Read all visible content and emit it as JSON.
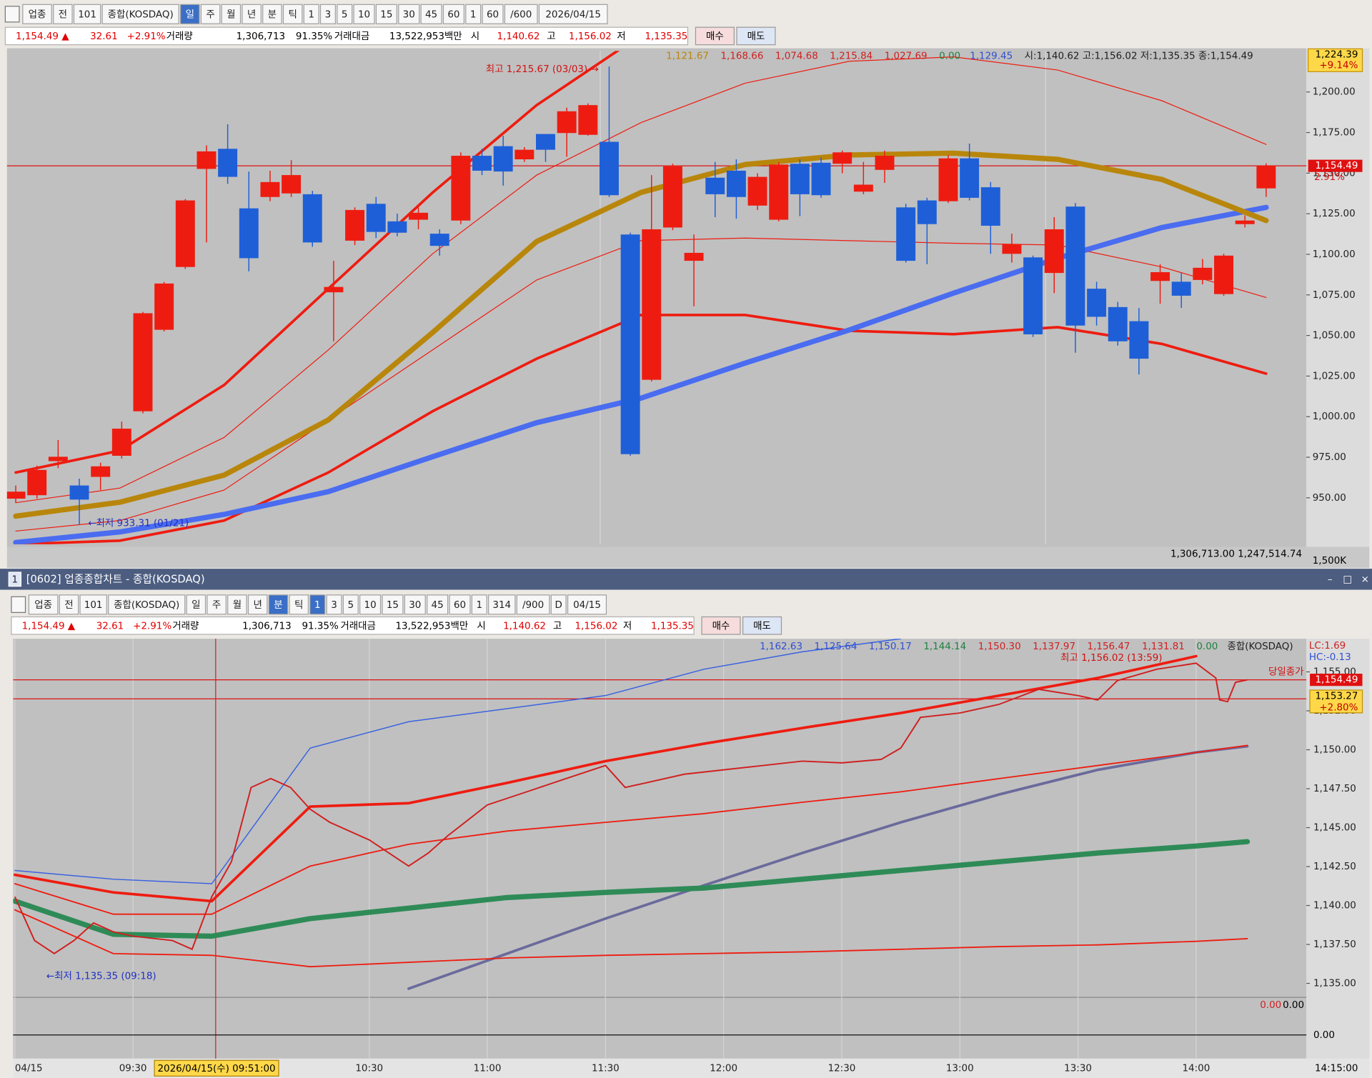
{
  "top_toolbar": {
    "items": [
      "업종",
      "전",
      "101",
      "종합(KOSDAQ)",
      "일",
      "주",
      "월",
      "년",
      "분",
      "틱",
      "1",
      "3",
      "5",
      "10",
      "15",
      "30",
      "45",
      "60",
      "1",
      "60",
      "/600",
      "2026/04/15"
    ],
    "selected_index": 4
  },
  "top_info": [
    {
      "text": "1,154.49 ▲",
      "color": "#e00000"
    },
    {
      "text": "32.61",
      "color": "#e00000"
    },
    {
      "text": "+2.91%",
      "color": "#e00000"
    },
    {
      "text": "거래량",
      "color": "#000000"
    },
    {
      "text": "1,306,713",
      "color": "#000000"
    },
    {
      "text": "91.35%",
      "color": "#000000"
    },
    {
      "text": "거래대금",
      "color": "#000000"
    },
    {
      "text": "13,522,953백만",
      "color": "#000000"
    },
    {
      "text": "시",
      "color": "#000000"
    },
    {
      "text": "1,140.62",
      "color": "#e00000"
    },
    {
      "text": "고",
      "color": "#000000"
    },
    {
      "text": "1,156.02",
      "color": "#e00000"
    },
    {
      "text": "저",
      "color": "#000000"
    },
    {
      "text": "1,135.35",
      "color": "#e00000"
    }
  ],
  "top_buttons": [
    "매수",
    "매도"
  ],
  "top_chart": {
    "legend": [
      {
        "text": "1,121.67",
        "color": "#b8860b"
      },
      {
        "text": "1,168.66",
        "color": "#d02020"
      },
      {
        "text": "1,074.68",
        "color": "#d02020"
      },
      {
        "text": "1,215.84",
        "color": "#d02020"
      },
      {
        "text": "1,027.69",
        "color": "#d02020"
      },
      {
        "text": "0.00",
        "color": "#208040"
      },
      {
        "text": "1,129.45",
        "color": "#3050d0"
      },
      {
        "text": "시:1,140.62 고:1,156.02 저:1,135.35 종:1,154.49",
        "color": "#202020"
      }
    ],
    "ylim": [
      921.4,
      1225.3
    ],
    "yticks": [
      {
        "value": 950,
        "label": "950.00"
      },
      {
        "value": 975,
        "label": "975.00"
      },
      {
        "value": 1000,
        "label": "1,000.00"
      },
      {
        "value": 1025,
        "label": "1,025.00"
      },
      {
        "value": 1050,
        "label": "1,050.00"
      },
      {
        "value": 1075,
        "label": "1,075.00"
      },
      {
        "value": 1100,
        "label": "1,100.00"
      },
      {
        "value": 1125,
        "label": "1,125.00"
      },
      {
        "value": 1150,
        "label": "1,150.00"
      },
      {
        "value": 1175,
        "label": "1,175.00"
      },
      {
        "value": 1200,
        "label": "1,200.00"
      }
    ],
    "up_color": "#ee1c10",
    "down_color": "#1e5fd8",
    "candles": {
      "open": [
        949.5,
        951.6,
        972.6,
        957.6,
        962.9,
        975.9,
        1003.3,
        1053.5,
        1092.2,
        1152.6,
        1165.0,
        1128.3,
        1135.3,
        1137.5,
        1137.0,
        1076.6,
        1108.4,
        1131.1,
        1120.3,
        1121.3,
        1112.7,
        1120.8,
        1160.7,
        1166.6,
        1158.5,
        1174.1,
        1174.7,
        1173.6,
        1169.3,
        1112.2,
        1022.7,
        1116.5,
        1096.0,
        1147.2,
        1151.5,
        1130.0,
        1121.3,
        1155.8,
        1156.4,
        1155.8,
        1138.6,
        1152.0,
        1128.9,
        1133.2,
        1132.7,
        1159.1,
        1141.3,
        1100.3,
        1098.1,
        1088.5,
        1129.4,
        1078.8,
        1067.5,
        1058.8,
        1083.6,
        1083.1,
        1084.2,
        1075.5,
        1118.6,
        1140.62
      ],
      "high": [
        957.6,
        969.9,
        985.6,
        961.8,
        971.6,
        996.9,
        1064.5,
        1083.0,
        1134.0,
        1167.1,
        1180.1,
        1151.0,
        1151.5,
        1158.0,
        1139.1,
        1096.0,
        1128.9,
        1135.3,
        1125.1,
        1128.9,
        1115.4,
        1162.8,
        1165.0,
        1173.0,
        1166.0,
        1174.1,
        1190.3,
        1193.0,
        1215.67,
        1113.3,
        1148.8,
        1155.8,
        1112.2,
        1156.9,
        1158.5,
        1149.9,
        1156.9,
        1158.5,
        1159.6,
        1163.9,
        1156.9,
        1163.9,
        1131.1,
        1134.8,
        1161.2,
        1168.2,
        1144.5,
        1112.7,
        1099.2,
        1122.9,
        1131.6,
        1083.1,
        1070.7,
        1066.9,
        1093.9,
        1088.5,
        1097.1,
        1100.3,
        1124.0,
        1156.02
      ],
      "low": [
        946.8,
        949.5,
        968.3,
        933.31,
        954.8,
        974.2,
        1002.0,
        1052.5,
        1091.0,
        1107.3,
        1143.4,
        1089.5,
        1132.7,
        1135.3,
        1104.6,
        1046.4,
        1105.7,
        1110.0,
        1111.1,
        1115.4,
        1099.2,
        1118.6,
        1148.8,
        1142.3,
        1156.9,
        1156.9,
        1160.1,
        1173.1,
        1135.3,
        975.9,
        1021.7,
        1114.9,
        1068.0,
        1122.9,
        1121.9,
        1127.3,
        1120.3,
        1123.5,
        1134.8,
        1149.9,
        1137.0,
        1144.0,
        1094.9,
        1093.9,
        1131.6,
        1133.2,
        1100.3,
        1094.9,
        1049.1,
        1076.1,
        1039.4,
        1056.1,
        1043.8,
        1026.0,
        1069.6,
        1067.0,
        1081.5,
        1074.5,
        1116.5,
        1135.35
      ],
      "close": [
        953.8,
        967.2,
        975.3,
        948.9,
        969.4,
        992.6,
        1063.7,
        1082.0,
        1133.2,
        1163.4,
        1147.7,
        1097.6,
        1144.5,
        1148.8,
        1107.3,
        1079.9,
        1127.3,
        1113.8,
        1113.3,
        1125.6,
        1105.2,
        1160.7,
        1151.5,
        1151.0,
        1164.4,
        1164.4,
        1188.1,
        1191.9,
        1136.4,
        976.9,
        1115.4,
        1154.2,
        1100.9,
        1137.0,
        1135.3,
        1147.7,
        1155.3,
        1137.0,
        1136.4,
        1162.8,
        1142.9,
        1160.7,
        1096.0,
        1118.6,
        1159.1,
        1134.8,
        1117.6,
        1106.2,
        1050.7,
        1115.4,
        1056.1,
        1061.5,
        1046.4,
        1035.7,
        1089.0,
        1074.5,
        1091.7,
        1099.2,
        1120.8,
        1154.49
      ]
    },
    "lines": [
      {
        "color": "#ee1c10",
        "width": 1,
        "values": [
          947.0,
          956.0,
          987.2,
          1041.1,
          1100.3,
          1148.8,
          1181.1,
          1205.4,
          1218.9,
          1221.6,
          1213.5,
          1194.6,
          1167.7
        ]
      },
      {
        "color": "#ee1c10",
        "width": 1,
        "values": [
          929.5,
          936.0,
          954.8,
          998.0,
          1041.1,
          1084.2,
          1108.4,
          1110.0,
          1108.4,
          1106.8,
          1105.7,
          1092.2,
          1073.4
        ]
      },
      {
        "color": "#ee1c10",
        "width": 3,
        "values": [
          921.4,
          923.6,
          936.0,
          965.6,
          1003.3,
          1035.7,
          1062.6,
          1062.6,
          1052.9,
          1050.8,
          1055.1,
          1044.8,
          1026.5
        ]
      },
      {
        "color": "#ee1c10",
        "width": 3,
        "values": [
          965.6,
          979.1,
          1019.5,
          1078.8,
          1138.0,
          1191.9,
          1235.0,
          null,
          null,
          null,
          null,
          null,
          null
        ]
      },
      {
        "color": "#4a6cf0",
        "width": 6,
        "values": [
          922.5,
          929.0,
          939.8,
          953.8,
          975.3,
          996.3,
          1011.4,
          1033.0,
          1053.4,
          1076.1,
          1097.6,
          1116.5,
          1128.9
        ]
      },
      {
        "color": "#b8860b",
        "width": 6,
        "values": [
          938.7,
          947.3,
          964.0,
          998.0,
          1051.8,
          1107.9,
          1138.1,
          1155.3,
          1161.2,
          1162.3,
          1158.5,
          1146.1,
          1120.8
        ]
      }
    ],
    "current_price": {
      "value": 1154.49,
      "label": "1,154.49",
      "change": "2.91%"
    },
    "upper_tag": {
      "value": 1224.39,
      "label": "1,224.39",
      "change": "+9.14%"
    },
    "high_note": "최고 1,215.67 (03/03) →",
    "low_note": "←최저 933.31 (01/21)",
    "volume_readout": "1,306,713.00 1,247,514.74",
    "volume_tick": "1,500K"
  },
  "window_title": {
    "number": "1",
    "text": "[0602] 업종종합차트 - 종합(KOSDAQ)"
  },
  "bottom_toolbar": {
    "items": [
      "업종",
      "전",
      "101",
      "종합(KOSDAQ)",
      "일",
      "주",
      "월",
      "년",
      "분",
      "틱",
      "1",
      "3",
      "5",
      "10",
      "15",
      "30",
      "45",
      "60",
      "1",
      "314",
      "/900",
      "D",
      "04/15"
    ],
    "selected_index": 8,
    "selected_index_2": 10
  },
  "bottom_info": [
    {
      "text": "1,154.49 ▲",
      "color": "#e00000"
    },
    {
      "text": "32.61",
      "color": "#e00000"
    },
    {
      "text": "+2.91%",
      "color": "#e00000"
    },
    {
      "text": "거래량",
      "color": "#000000"
    },
    {
      "text": "1,306,713",
      "color": "#000000"
    },
    {
      "text": "91.35%",
      "color": "#000000"
    },
    {
      "text": "거래대금",
      "color": "#000000"
    },
    {
      "text": "13,522,953백만",
      "color": "#000000"
    },
    {
      "text": "시",
      "color": "#000000"
    },
    {
      "text": "1,140.62",
      "color": "#e00000"
    },
    {
      "text": "고",
      "color": "#000000"
    },
    {
      "text": "1,156.02",
      "color": "#e00000"
    },
    {
      "text": "저",
      "color": "#000000"
    },
    {
      "text": "1,135.35",
      "color": "#e00000"
    }
  ],
  "bottom_buttons": [
    "매수",
    "매도"
  ],
  "bottom_chart": {
    "legend": [
      {
        "text": "1,162.63",
        "color": "#3050d0"
      },
      {
        "text": "1,125.64",
        "color": "#3050d0"
      },
      {
        "text": "1,150.17",
        "color": "#3050d0"
      },
      {
        "text": "1,144.14",
        "color": "#208040"
      },
      {
        "text": "1,150.30",
        "color": "#d02020"
      },
      {
        "text": "1,137.97",
        "color": "#d02020"
      },
      {
        "text": "1,156.47",
        "color": "#d02020"
      },
      {
        "text": "1,131.81",
        "color": "#d02020"
      },
      {
        "text": "0.00",
        "color": "#208040"
      },
      {
        "text": "종합(KOSDAQ)",
        "color": "#202020"
      }
    ],
    "ylim": [
      1134.1,
      1157.13
    ],
    "xlim": [
      0,
      328
    ],
    "yticks": [
      {
        "value": 1135,
        "label": "1,135.00"
      },
      {
        "value": 1137.5,
        "label": "1,137.50"
      },
      {
        "value": 1140,
        "label": "1,140.00"
      },
      {
        "value": 1142.5,
        "label": "1,142.50"
      },
      {
        "value": 1145,
        "label": "1,145.00"
      },
      {
        "value": 1147.5,
        "label": "1,147.50"
      },
      {
        "value": 1150,
        "label": "1,150.00"
      },
      {
        "value": 1152.5,
        "label": "1,152.50"
      },
      {
        "value": 1155,
        "label": "1,155.00"
      }
    ],
    "xticks": [
      {
        "value": 0,
        "label": "04/15"
      },
      {
        "value": 30,
        "label": "09:30"
      },
      {
        "value": 90,
        "label": "10:30"
      },
      {
        "value": 120,
        "label": "11:00"
      },
      {
        "value": 150,
        "label": "11:30"
      },
      {
        "value": 180,
        "label": "12:00"
      },
      {
        "value": 210,
        "label": "12:30"
      },
      {
        "value": 240,
        "label": "13:00"
      },
      {
        "value": 270,
        "label": "13:30"
      },
      {
        "value": 300,
        "label": "14:00"
      }
    ],
    "x_end_label": "14:15:00",
    "price": {
      "color": "#d02020",
      "bar": [
        0,
        5,
        10,
        15,
        20,
        25,
        30,
        40,
        45,
        50,
        55,
        60,
        65,
        70,
        75,
        80,
        90,
        95,
        100,
        105,
        110,
        120,
        130,
        140,
        150,
        155,
        160,
        170,
        180,
        190,
        200,
        210,
        220,
        225,
        230,
        240,
        250,
        260,
        270,
        275,
        280,
        290,
        300,
        305,
        306,
        308,
        310,
        313
      ],
      "close": [
        1140.56,
        1137.75,
        1136.91,
        1137.75,
        1138.88,
        1138.31,
        1138.03,
        1137.75,
        1137.19,
        1140.56,
        1142.81,
        1147.58,
        1148.15,
        1147.58,
        1146.18,
        1145.34,
        1144.21,
        1143.37,
        1142.53,
        1143.37,
        1144.49,
        1146.46,
        1147.3,
        1148.15,
        1148.99,
        1147.58,
        1147.86,
        1148.43,
        1148.71,
        1148.99,
        1149.27,
        1149.16,
        1149.38,
        1150.11,
        1152.08,
        1152.36,
        1152.92,
        1153.88,
        1153.48,
        1153.2,
        1154.44,
        1155.17,
        1155.56,
        1154.61,
        1153.2,
        1153.09,
        1154.33,
        1154.49
      ]
    },
    "line_bars": [
      0,
      25,
      50,
      75,
      100,
      125,
      150,
      175,
      200,
      225,
      250,
      275,
      300,
      313
    ],
    "lines": [
      {
        "color": "#6a6a9c",
        "width": 3,
        "values": [
          null,
          null,
          null,
          null,
          1134.66,
          1136.91,
          1139.16,
          1141.29,
          1143.37,
          1145.34,
          1147.13,
          1148.71,
          1149.83,
          1150.22
        ]
      },
      {
        "color": "#2e8b57",
        "width": 6,
        "values": [
          1140.28,
          1138.15,
          1138.03,
          1139.16,
          1139.83,
          1140.51,
          1140.84,
          1141.12,
          1141.69,
          1142.25,
          1142.81,
          1143.37,
          1143.82,
          1144.1
        ]
      },
      {
        "color": "#3a62e0",
        "width": 1.2,
        "values": [
          1142.25,
          1141.69,
          1141.4,
          1150.11,
          1151.8,
          1152.64,
          1153.48,
          1155.17,
          1156.29,
          1157.13,
          null,
          null,
          null,
          null
        ]
      },
      {
        "color": "#ee1c10",
        "width": 1.5,
        "values": [
          1139.72,
          1136.91,
          1136.8,
          1136.07,
          1136.35,
          1136.63,
          1136.8,
          1136.91,
          1137.02,
          1137.19,
          1137.36,
          1137.47,
          1137.7,
          1137.87
        ]
      },
      {
        "color": "#ee1c10",
        "width": 1.5,
        "values": [
          1141.4,
          1139.44,
          1139.44,
          1142.53,
          1143.93,
          1144.78,
          1145.34,
          1145.9,
          1146.63,
          1147.3,
          1148.15,
          1148.99,
          1149.83,
          1150.28
        ]
      },
      {
        "color": "#ee1c10",
        "width": 3,
        "values": [
          1141.97,
          1140.84,
          1140.28,
          1146.35,
          1146.57,
          1147.87,
          1149.27,
          1150.39,
          1151.4,
          1152.36,
          1153.48,
          1154.61,
          1156.01,
          null
        ]
      }
    ],
    "current_price": {
      "value": 1154.49,
      "label": "1,154.49",
      "note": "당일종가"
    },
    "ref_price": {
      "value": 1153.27,
      "label": "1,153.27",
      "change": "+2.80%"
    },
    "lc": "LC:1.69",
    "hc": "HC:-0.13",
    "crosshair": {
      "bar": 51,
      "label": "2026/04/15(수) 09:51:00"
    },
    "high_note": "최고 1,156.02 (13:59)",
    "low_note": "←최저 1,135.35 (09:18)",
    "sub_readout": [
      "0.00",
      "0.00"
    ],
    "sub_zero": {
      "value": 0,
      "label": "0.00"
    }
  }
}
